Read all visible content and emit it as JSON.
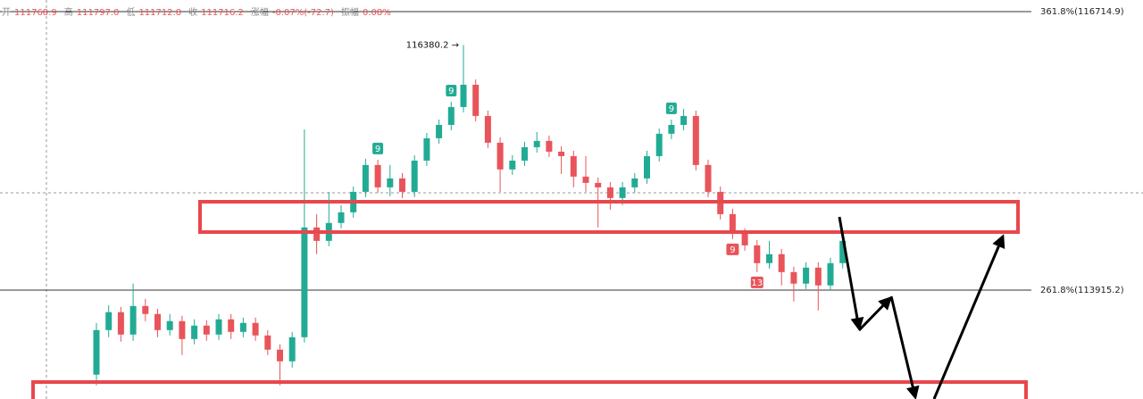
{
  "chart_data": {
    "type": "candlestick",
    "header": [
      {
        "name": "开",
        "value": "111768.9"
      },
      {
        "name": "高",
        "value": "111797.0"
      },
      {
        "name": "低",
        "value": "111712.8"
      },
      {
        "name": "收",
        "value": "111716.2"
      },
      {
        "name": "涨幅",
        "value": "-0.07%(-72.7)"
      },
      {
        "name": "振幅",
        "value": "0.08%"
      }
    ],
    "ylim": [
      112820,
      116832
    ],
    "up_color": "#22ab94",
    "down_color": "#e8545a",
    "levels": [
      {
        "value": 116714.9,
        "label": "361.8%(116714.9)"
      },
      {
        "value": 113915.2,
        "label": "261.8%(113915.2)"
      }
    ],
    "annotation": {
      "value": 116380.2,
      "label": "116380.2 →"
    },
    "candles": [
      [
        113065,
        113585,
        112957,
        113513
      ],
      [
        113513,
        113764,
        113441,
        113693
      ],
      [
        113693,
        113746,
        113397,
        113468
      ],
      [
        113468,
        113980,
        113405,
        113755
      ],
      [
        113755,
        113827,
        113603,
        113675
      ],
      [
        113675,
        113728,
        113441,
        113513
      ],
      [
        113513,
        113675,
        113459,
        113603
      ],
      [
        113603,
        113657,
        113262,
        113423
      ],
      [
        113423,
        113621,
        113370,
        113558
      ],
      [
        113558,
        113612,
        113405,
        113468
      ],
      [
        113468,
        113675,
        113414,
        113621
      ],
      [
        113621,
        113675,
        113423,
        113495
      ],
      [
        113495,
        113639,
        113441,
        113585
      ],
      [
        113585,
        113639,
        113405,
        113459
      ],
      [
        113459,
        113513,
        113262,
        113316
      ],
      [
        113316,
        113370,
        112957,
        113199
      ],
      [
        113199,
        113495,
        113136,
        113441
      ],
      [
        113441,
        115531,
        113388,
        114545
      ],
      [
        114545,
        114679,
        114276,
        114410
      ],
      [
        114410,
        114903,
        114356,
        114590
      ],
      [
        114590,
        114769,
        114536,
        114697
      ],
      [
        114697,
        114957,
        114643,
        114903
      ],
      [
        114903,
        115235,
        114850,
        115173
      ],
      [
        115173,
        115226,
        114894,
        114948
      ],
      [
        114948,
        115173,
        114859,
        115038
      ],
      [
        115038,
        115092,
        114841,
        114903
      ],
      [
        114903,
        115271,
        114850,
        115217
      ],
      [
        115217,
        115495,
        115164,
        115442
      ],
      [
        115442,
        115630,
        115388,
        115576
      ],
      [
        115576,
        115809,
        115522,
        115756
      ],
      [
        115756,
        116380.2,
        115702,
        115980
      ],
      [
        115980,
        116034,
        115612,
        115666
      ],
      [
        115666,
        115720,
        115343,
        115397
      ],
      [
        115397,
        115451,
        114903,
        115128
      ],
      [
        115128,
        115271,
        115074,
        115217
      ],
      [
        115217,
        115406,
        115164,
        115352
      ],
      [
        115352,
        115504,
        115298,
        115415
      ],
      [
        115415,
        115469,
        115253,
        115307
      ],
      [
        115307,
        115361,
        115083,
        115262
      ],
      [
        115262,
        115316,
        114948,
        115056
      ],
      [
        115056,
        115262,
        114903,
        114993
      ],
      [
        114993,
        115047,
        114545,
        114948
      ],
      [
        114948,
        115002,
        114724,
        114841
      ],
      [
        114841,
        115002,
        114769,
        114948
      ],
      [
        114948,
        115092,
        114894,
        115038
      ],
      [
        115038,
        115316,
        114984,
        115262
      ],
      [
        115262,
        115540,
        115208,
        115487
      ],
      [
        115487,
        115630,
        115433,
        115576
      ],
      [
        115576,
        115738,
        115522,
        115666
      ],
      [
        115666,
        115720,
        115119,
        115173
      ],
      [
        115173,
        115226,
        114850,
        114903
      ],
      [
        114903,
        114957,
        114625,
        114679
      ],
      [
        114679,
        114733,
        114428,
        114482
      ],
      [
        114482,
        114536,
        114311,
        114365
      ],
      [
        114365,
        114419,
        114096,
        114186
      ],
      [
        114186,
        114410,
        114132,
        114276
      ],
      [
        114276,
        114329,
        113962,
        114096
      ],
      [
        114096,
        114150,
        113800,
        113980
      ],
      [
        113980,
        114195,
        113926,
        114141
      ],
      [
        114141,
        114195,
        113710,
        113962
      ],
      [
        113962,
        114240,
        113908,
        114186
      ],
      [
        114186,
        114482,
        114132,
        114410
      ]
    ],
    "setup_above": [
      null,
      null,
      null,
      null,
      null,
      null,
      null,
      null,
      null,
      null,
      null,
      null,
      null,
      null,
      null,
      null,
      null,
      null,
      null,
      null,
      null,
      null,
      null,
      "9",
      null,
      null,
      null,
      null,
      null,
      "9",
      null,
      null,
      null,
      null,
      null,
      null,
      null,
      null,
      null,
      null,
      null,
      null,
      null,
      null,
      null,
      null,
      null,
      "9",
      null,
      null,
      null,
      null,
      null,
      null,
      null,
      null,
      null,
      null,
      null,
      null,
      null,
      null
    ],
    "setup_below": [
      null,
      null,
      null,
      null,
      null,
      null,
      null,
      null,
      null,
      null,
      null,
      null,
      null,
      null,
      null,
      null,
      null,
      null,
      null,
      null,
      null,
      null,
      null,
      null,
      null,
      null,
      null,
      null,
      null,
      null,
      null,
      null,
      null,
      null,
      null,
      null,
      null,
      null,
      null,
      null,
      null,
      null,
      null,
      null,
      null,
      null,
      null,
      null,
      null,
      null,
      null,
      null,
      "9",
      null,
      "13",
      null,
      null,
      null,
      null,
      null,
      null,
      null
    ]
  }
}
